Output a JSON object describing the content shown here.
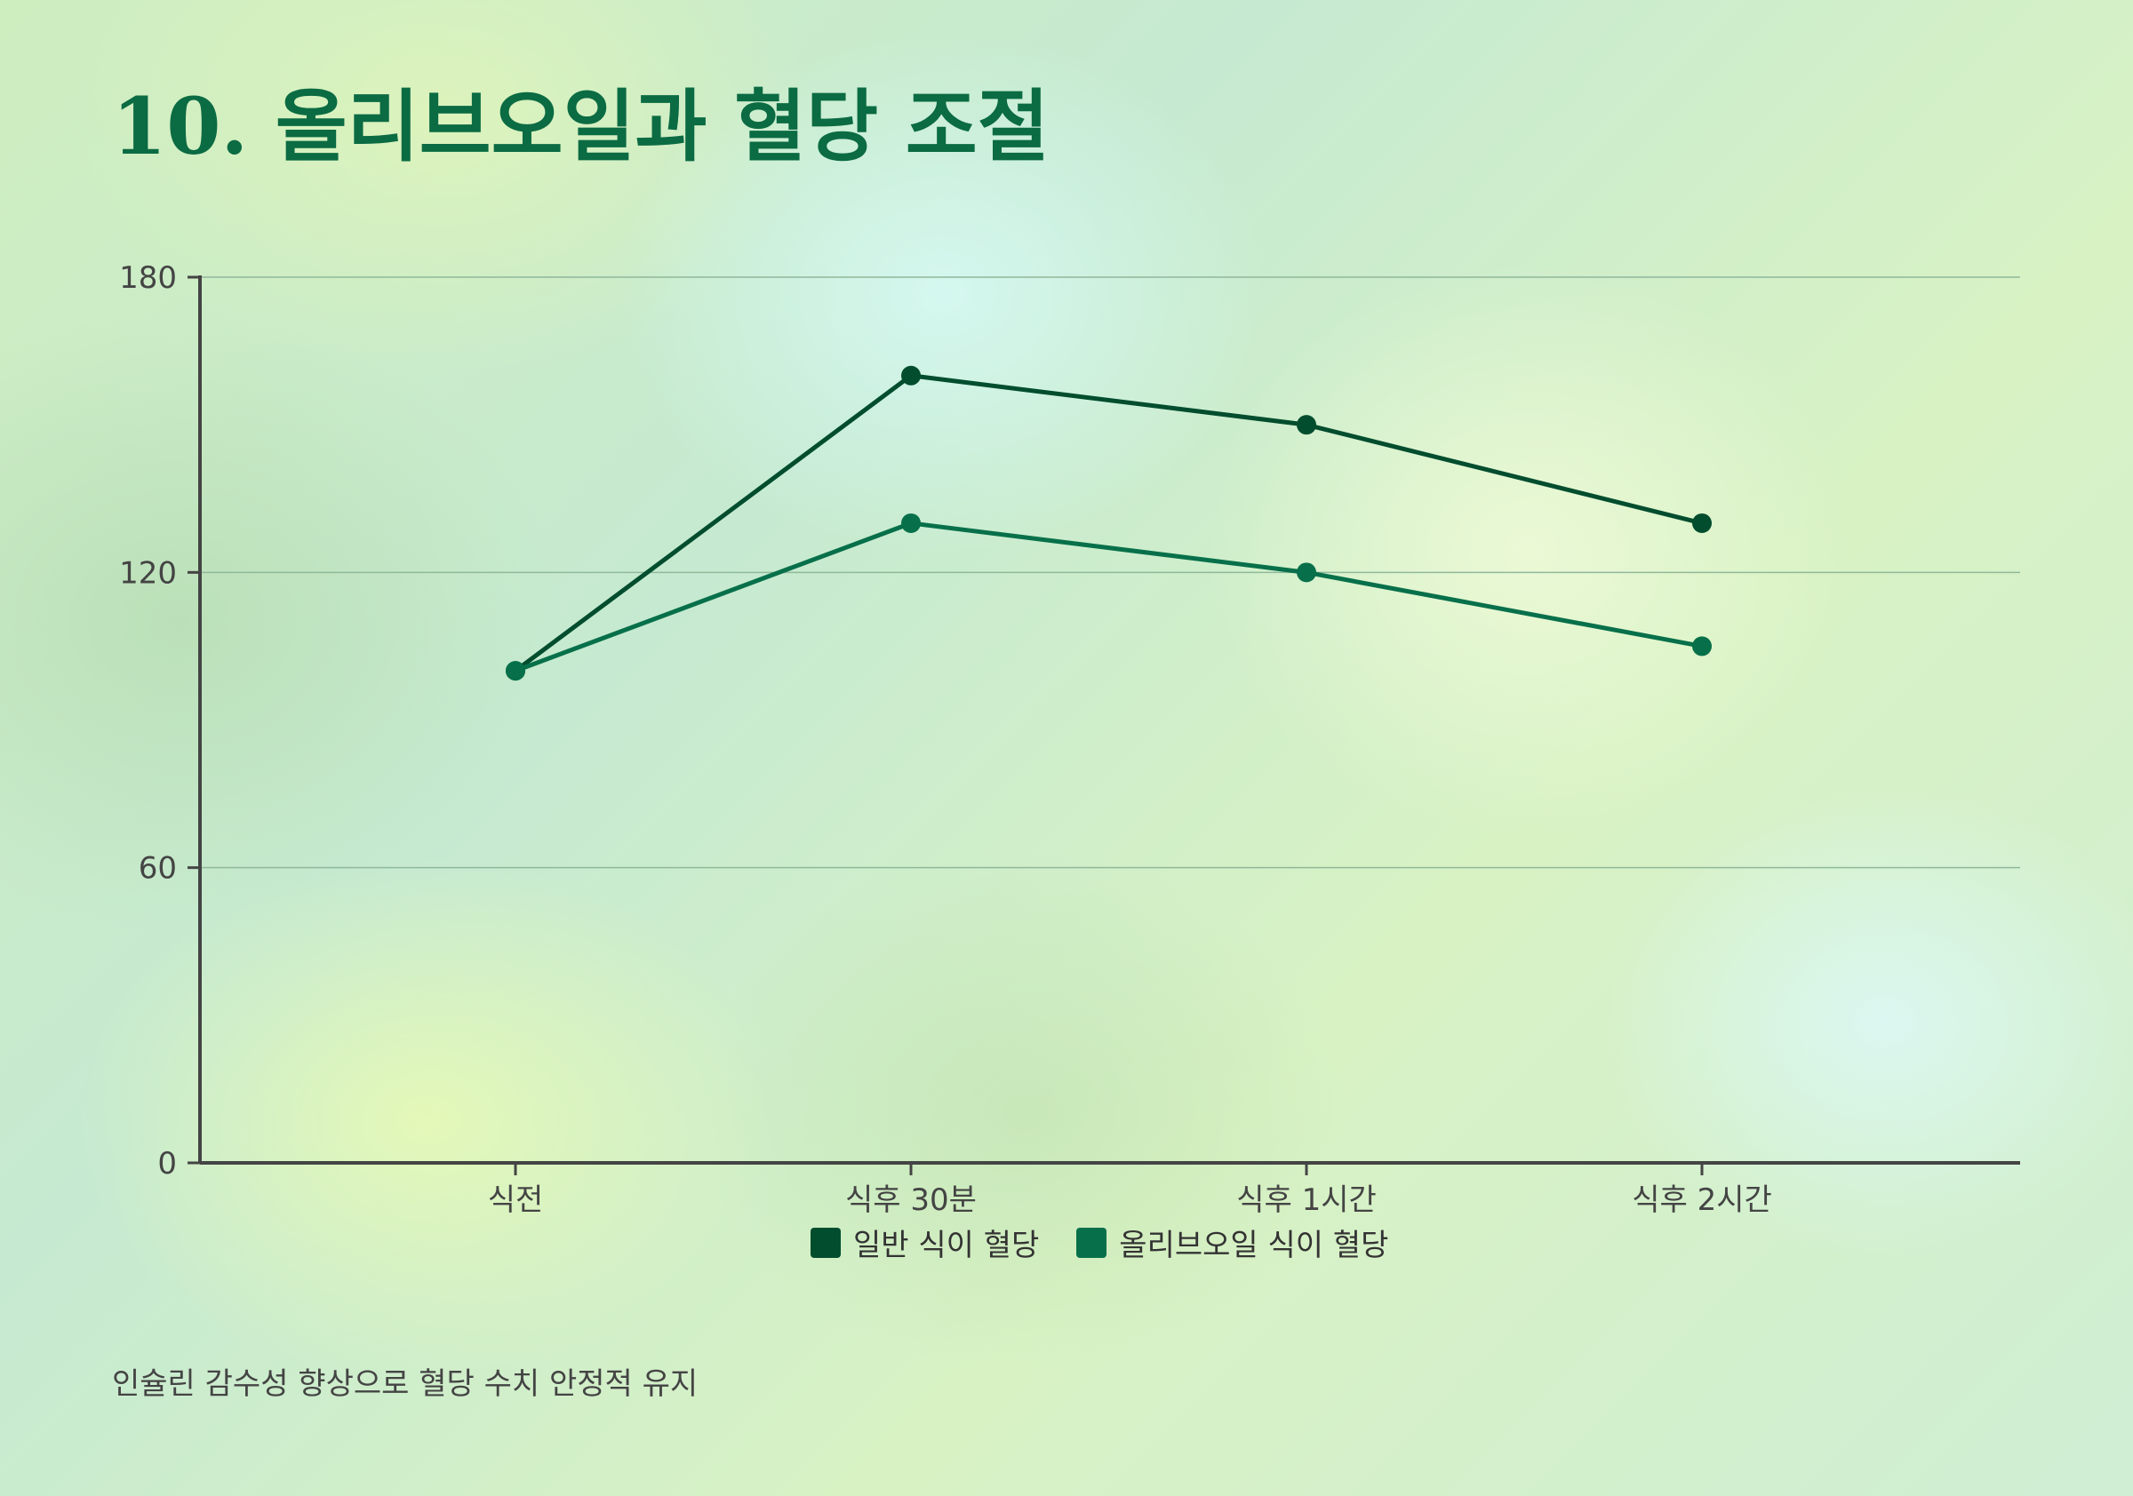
{
  "title": "10. 올리브오일과 혈당 조절",
  "footnote": "인슐린 감수성 향상으로 혈당 수치 안정적 유지",
  "chart_data": {
    "type": "line",
    "categories": [
      "식전",
      "식후 30분",
      "식후 1시간",
      "식후 2시간"
    ],
    "series": [
      {
        "name": "일반 식이 혈당",
        "values": [
          100,
          160,
          150,
          130
        ],
        "color": "#014d2e"
      },
      {
        "name": "올리브오일 식이 혈당",
        "values": [
          100,
          130,
          120,
          105
        ],
        "color": "#07704a"
      }
    ],
    "ylim": [
      0,
      180
    ],
    "yticks": [
      0,
      60,
      120,
      180
    ],
    "grid": true,
    "legend": "bottom",
    "title": "",
    "xlabel": "",
    "ylabel": ""
  }
}
